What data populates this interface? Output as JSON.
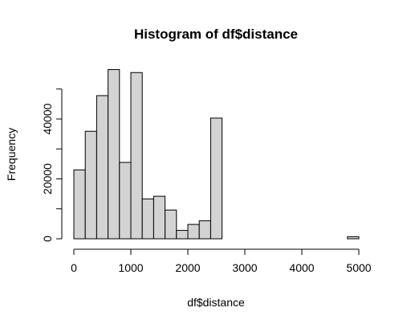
{
  "chart_data": {
    "type": "bar",
    "title": "Histogram of df$distance",
    "xlabel": "df$distance",
    "ylabel": "Frequency",
    "xlim": [
      0,
      5000
    ],
    "ylim": [
      0,
      50000
    ],
    "grid": false,
    "legend": "none",
    "colors": {
      "bar_fill": "#d3d3d3",
      "bar_stroke": "#000000",
      "background": "#ffffff"
    },
    "x_ticks": [
      0,
      1000,
      2000,
      3000,
      4000,
      5000
    ],
    "x_tick_labels": [
      "0",
      "1000",
      "2000",
      "3000",
      "4000",
      "5000"
    ],
    "y_ticks": [
      0,
      20000,
      40000
    ],
    "y_tick_labels": [
      "0",
      "20000",
      "40000"
    ],
    "bin_width": 200,
    "bins": [
      {
        "x0": 0,
        "x1": 200,
        "count": 23000
      },
      {
        "x0": 200,
        "x1": 400,
        "count": 35900
      },
      {
        "x0": 400,
        "x1": 600,
        "count": 47800
      },
      {
        "x0": 600,
        "x1": 800,
        "count": 56500
      },
      {
        "x0": 800,
        "x1": 1000,
        "count": 25500
      },
      {
        "x0": 1000,
        "x1": 1200,
        "count": 55500
      },
      {
        "x0": 1200,
        "x1": 1400,
        "count": 13300
      },
      {
        "x0": 1400,
        "x1": 1600,
        "count": 14200
      },
      {
        "x0": 1600,
        "x1": 1800,
        "count": 9600
      },
      {
        "x0": 1800,
        "x1": 2000,
        "count": 2800
      },
      {
        "x0": 2000,
        "x1": 2200,
        "count": 4800
      },
      {
        "x0": 2200,
        "x1": 2400,
        "count": 6000
      },
      {
        "x0": 2400,
        "x1": 2600,
        "count": 40300
      },
      {
        "x0": 2600,
        "x1": 2800,
        "count": 0
      },
      {
        "x0": 2800,
        "x1": 3000,
        "count": 0
      },
      {
        "x0": 3000,
        "x1": 3200,
        "count": 0
      },
      {
        "x0": 3200,
        "x1": 3400,
        "count": 0
      },
      {
        "x0": 3400,
        "x1": 3600,
        "count": 0
      },
      {
        "x0": 3600,
        "x1": 3800,
        "count": 0
      },
      {
        "x0": 3800,
        "x1": 4000,
        "count": 0
      },
      {
        "x0": 4000,
        "x1": 4200,
        "count": 0
      },
      {
        "x0": 4200,
        "x1": 4400,
        "count": 0
      },
      {
        "x0": 4400,
        "x1": 4600,
        "count": 0
      },
      {
        "x0": 4600,
        "x1": 4800,
        "count": 0
      },
      {
        "x0": 4800,
        "x1": 5000,
        "count": 700
      }
    ]
  }
}
